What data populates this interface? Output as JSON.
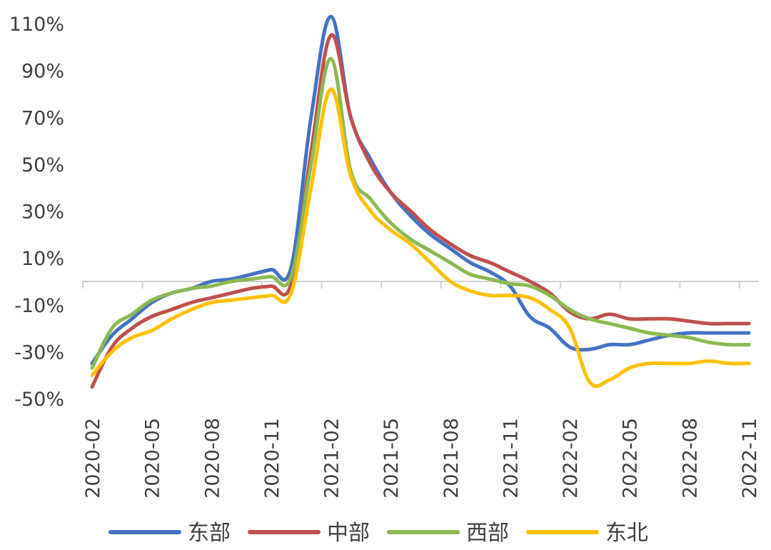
{
  "chart_data": {
    "type": "line",
    "title": "",
    "xlabel": "",
    "ylabel": "",
    "x": [
      "2020-02",
      "2020-03",
      "2020-04",
      "2020-05",
      "2020-06",
      "2020-07",
      "2020-08",
      "2020-09",
      "2020-10",
      "2020-11",
      "2020-12",
      "2021-01",
      "2021-02",
      "2021-03",
      "2021-04",
      "2021-05",
      "2021-06",
      "2021-07",
      "2021-08",
      "2021-09",
      "2021-10",
      "2021-11",
      "2021-12",
      "2022-01",
      "2022-02",
      "2022-03",
      "2022-04",
      "2022-05",
      "2022-06",
      "2022-07",
      "2022-08",
      "2022-09",
      "2022-10",
      "2022-11"
    ],
    "x_tick_labels": [
      "2020-02",
      "2020-05",
      "2020-08",
      "2020-11",
      "2021-02",
      "2021-05",
      "2021-08",
      "2021-11",
      "2022-02",
      "2022-05",
      "2022-08",
      "2022-11"
    ],
    "y_tick_labels": [
      "110%",
      "90%",
      "70%",
      "50%",
      "30%",
      "10%",
      "-10%",
      "-30%",
      "-50%"
    ],
    "ylim": [
      -50,
      110
    ],
    "grid": false,
    "legend_position": "bottom",
    "series": [
      {
        "name": "东部",
        "color": "#4472C4",
        "values": [
          -35,
          -23,
          -16,
          -9,
          -5,
          -3,
          0,
          1,
          3,
          5,
          6,
          70,
          113,
          70,
          52,
          38,
          28,
          20,
          14,
          8,
          4,
          -2,
          -15,
          -20,
          -28,
          -29,
          -27,
          -27,
          -25,
          -23,
          -22,
          -22,
          -22,
          -22
        ]
      },
      {
        "name": "中部",
        "color": "#C0504D",
        "values": [
          -45,
          -28,
          -20,
          -15,
          -12,
          -9,
          -7,
          -5,
          -3,
          -2,
          -1,
          55,
          105,
          70,
          50,
          38,
          30,
          22,
          16,
          11,
          8,
          4,
          0,
          -5,
          -13,
          -16,
          -14,
          -16,
          -16,
          -16,
          -17,
          -18,
          -18,
          -18
        ]
      },
      {
        "name": "西部",
        "color": "#8DB852",
        "values": [
          -37,
          -20,
          -14,
          -8,
          -5,
          -3,
          -2,
          0,
          1,
          2,
          2,
          50,
          95,
          47,
          35,
          25,
          18,
          13,
          8,
          3,
          1,
          -1,
          -2,
          -6,
          -12,
          -16,
          -18,
          -20,
          -22,
          -23,
          -24,
          -26,
          -27,
          -27
        ]
      },
      {
        "name": "东北",
        "color": "#FFC000",
        "values": [
          -40,
          -30,
          -24,
          -21,
          -16,
          -12,
          -9,
          -8,
          -7,
          -6,
          -5,
          40,
          82,
          45,
          30,
          22,
          16,
          8,
          0,
          -4,
          -6,
          -6,
          -7,
          -12,
          -20,
          -43,
          -42,
          -37,
          -35,
          -35,
          -35,
          -34,
          -35,
          -35
        ]
      }
    ]
  }
}
